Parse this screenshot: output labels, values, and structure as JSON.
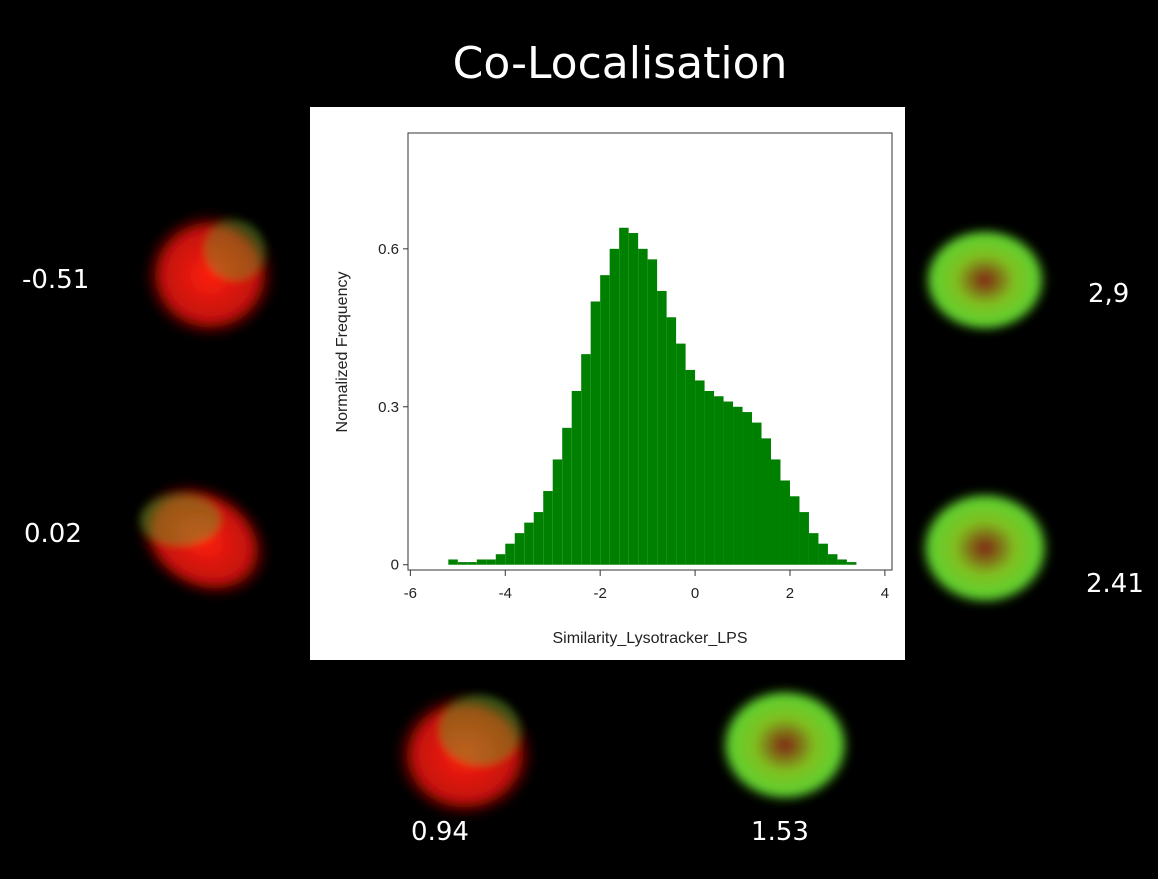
{
  "title": "Co-Localisation",
  "cells": [
    {
      "label": "-0.51"
    },
    {
      "label": "0.02"
    },
    {
      "label": "0.94"
    },
    {
      "label": "1.53"
    },
    {
      "label": "2,9"
    },
    {
      "label": "2.41"
    }
  ],
  "chart_data": {
    "type": "histogram",
    "x_label": "Similarity_Lysotracker_LPS",
    "y_label": "Normalized Frequency",
    "color": "#008000",
    "bins": [
      -6,
      -5.8,
      -5.6,
      -5.4,
      -5.2,
      -5,
      -4.8,
      -4.6,
      -4.4,
      -4.2,
      -4,
      -3.8,
      -3.6,
      -3.4,
      -3.2,
      -3,
      -2.8,
      -2.6,
      -2.4,
      -2.2,
      -2,
      -1.8,
      -1.6,
      -1.4,
      -1.2,
      -1,
      -0.8,
      -0.6,
      -0.4,
      -0.2,
      0,
      0.2,
      0.4,
      0.6,
      0.8,
      1,
      1.2,
      1.4,
      1.6,
      1.8,
      2,
      2.2,
      2.4,
      2.6,
      2.8,
      3,
      3.2,
      3.4,
      3.6,
      3.8,
      4
    ],
    "values": [
      0,
      0,
      0,
      0,
      0.01,
      0.005,
      0.005,
      0.01,
      0.01,
      0.02,
      0.04,
      0.06,
      0.08,
      0.1,
      0.14,
      0.2,
      0.26,
      0.33,
      0.4,
      0.5,
      0.55,
      0.6,
      0.64,
      0.63,
      0.6,
      0.58,
      0.52,
      0.47,
      0.42,
      0.37,
      0.35,
      0.33,
      0.32,
      0.31,
      0.3,
      0.29,
      0.27,
      0.24,
      0.2,
      0.16,
      0.13,
      0.1,
      0.06,
      0.04,
      0.02,
      0.01,
      0.005,
      0,
      0,
      0
    ],
    "xlim": [
      -6.05,
      4.15
    ],
    "ylim": [
      -0.01,
      0.82
    ],
    "xticks": [
      -6,
      -4,
      -2,
      0,
      2,
      4
    ],
    "yticks": [
      0,
      0.3,
      0.6
    ]
  }
}
